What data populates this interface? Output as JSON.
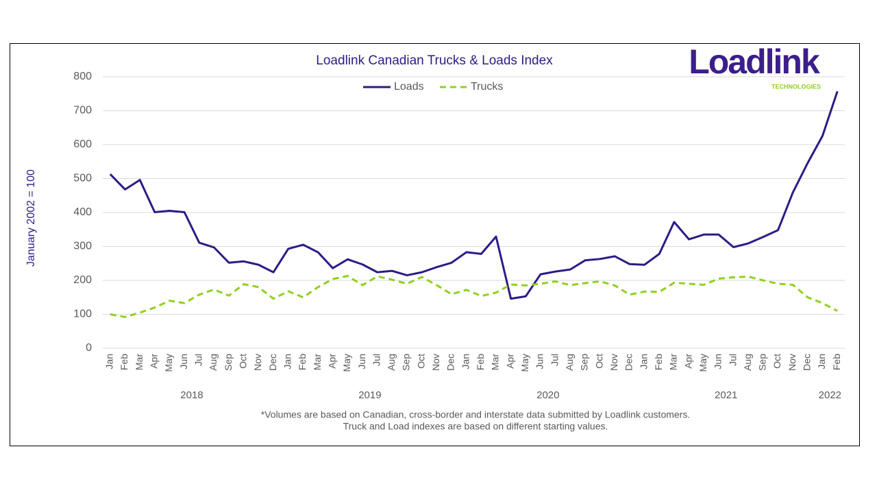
{
  "chart_data": {
    "type": "line",
    "title": "Loadlink Canadian Trucks & Loads Index",
    "logo": {
      "name": "Loadlink",
      "tagline": "TECHNOLOGIES"
    },
    "y_label": "January 2002 = 100",
    "footnote": [
      "*Volumes are based on Canadian, cross-border and interstate data submitted by Loadlink customers.",
      "Truck and Load indexes are based on different starting values."
    ],
    "categories": [
      "Jan",
      "Feb",
      "Mar",
      "Apr",
      "May",
      "Jun",
      "Jul",
      "Aug",
      "Sep",
      "Oct",
      "Nov",
      "Dec",
      "Jan",
      "Feb",
      "Mar",
      "Apr",
      "May",
      "Jun",
      "Jul",
      "Aug",
      "Sep",
      "Oct",
      "Nov",
      "Dec",
      "Jan",
      "Feb",
      "Mar",
      "Apr",
      "May",
      "Jun",
      "Jul",
      "Aug",
      "Sep",
      "Oct",
      "Nov",
      "Dec",
      "Jan",
      "Feb",
      "Mar",
      "Apr",
      "May",
      "Jun",
      "Jul",
      "Aug",
      "Sep",
      "Oct",
      "Nov",
      "Dec",
      "Jan",
      "Feb"
    ],
    "groups": [
      {
        "name": "2018",
        "count": 12
      },
      {
        "name": "2019",
        "count": 12
      },
      {
        "name": "2020",
        "count": 12
      },
      {
        "name": "2021",
        "count": 12
      },
      {
        "name": "2022",
        "count": 2
      }
    ],
    "series": [
      {
        "name": "Loads",
        "color": "#2e1a87",
        "dash": false,
        "values": [
          513,
          468,
          496,
          401,
          405,
          401,
          311,
          297,
          252,
          256,
          246,
          224,
          293,
          305,
          283,
          236,
          262,
          247,
          224,
          228,
          215,
          224,
          239,
          252,
          283,
          278,
          329,
          146,
          153,
          218,
          226,
          232,
          259,
          263,
          271,
          248,
          246,
          278,
          372,
          321,
          335,
          335,
          298,
          309,
          328,
          348,
          459,
          546,
          626,
          757
        ]
      },
      {
        "name": "Trucks",
        "color": "#8fd11d",
        "dash": true,
        "values": [
          100,
          92,
          105,
          120,
          140,
          133,
          158,
          173,
          155,
          189,
          180,
          146,
          168,
          150,
          180,
          204,
          213,
          186,
          212,
          202,
          190,
          210,
          186,
          159,
          172,
          154,
          164,
          188,
          185,
          190,
          197,
          186,
          192,
          197,
          185,
          158,
          167,
          166,
          193,
          190,
          187,
          205,
          209,
          211,
          200,
          190,
          187,
          150,
          133,
          110
        ]
      }
    ],
    "ylim": [
      0,
      800
    ],
    "yticks": [
      0,
      100,
      200,
      300,
      400,
      500,
      600,
      700,
      800
    ],
    "grid": true,
    "legend": "top"
  }
}
